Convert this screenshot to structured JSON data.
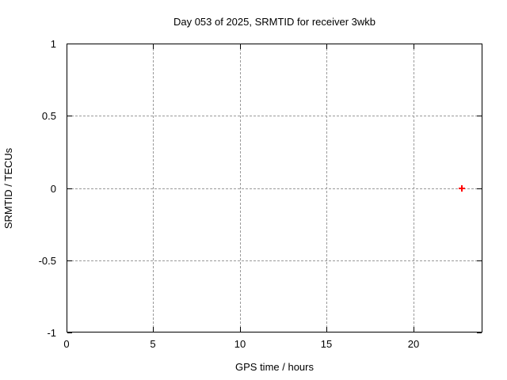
{
  "chart_data": {
    "type": "scatter",
    "title": "Day 053 of 2025, SRMTID for receiver 3wkb",
    "xlabel": "GPS time / hours",
    "ylabel": "SRMTID / TECUs",
    "xlim": [
      0,
      24
    ],
    "ylim": [
      -1,
      1
    ],
    "xticks": [
      {
        "v": 0,
        "label": "0"
      },
      {
        "v": 5,
        "label": "5"
      },
      {
        "v": 10,
        "label": "10"
      },
      {
        "v": 15,
        "label": "15"
      },
      {
        "v": 20,
        "label": "20"
      }
    ],
    "yticks": [
      {
        "v": -1,
        "label": "-1"
      },
      {
        "v": -0.5,
        "label": "-0.5"
      },
      {
        "v": 0,
        "label": "0"
      },
      {
        "v": 0.5,
        "label": "0.5"
      },
      {
        "v": 1,
        "label": "1"
      }
    ],
    "grid": true,
    "legend": "none",
    "series": [
      {
        "name": "SRMTID",
        "marker": "plus",
        "color": "#ff0000",
        "points": [
          {
            "x": 22.8,
            "y": 0.0
          }
        ]
      }
    ],
    "colors": {
      "background": "#ffffff",
      "axis": "#000000",
      "grid": "#9a9a9a",
      "text": "#000000"
    }
  }
}
